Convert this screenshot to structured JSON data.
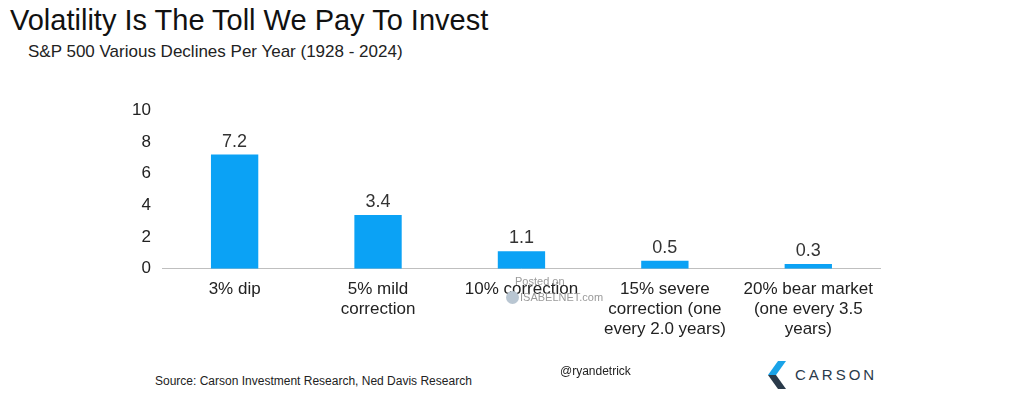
{
  "chart_data": {
    "type": "bar",
    "title": "Volatility Is The Toll We Pay To Invest",
    "subtitle": "S&P 500 Various Declines Per Year (1928 - 2024)",
    "categories": [
      "3% dip",
      "5% mild correction",
      "10% correction",
      "15% severe correction (one every 2.0 years)",
      "20% bear market (one every 3.5 years)"
    ],
    "values": [
      7.2,
      3.4,
      1.1,
      0.5,
      0.3
    ],
    "color": "#0ba2f5",
    "ylim": [
      0,
      10
    ],
    "yticks": [
      0,
      2,
      4,
      6,
      8,
      10
    ],
    "grid": false,
    "data_labels": true,
    "annotations": [
      "Source: Carson Investment Research, Ned Davis Research",
      "@ryandetrick",
      "CARSON",
      "Posted on",
      "ISABELNET.com"
    ]
  }
}
